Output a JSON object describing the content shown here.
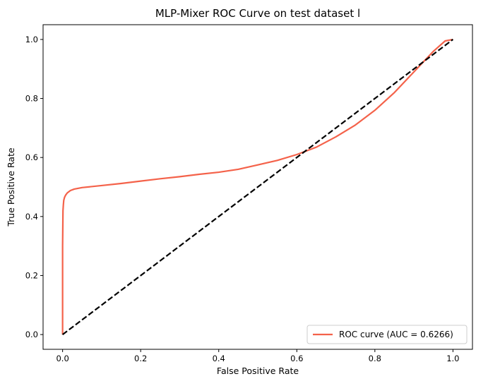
{
  "chart_data": {
    "type": "line",
    "title": "MLP-Mixer ROC Curve on test dataset l",
    "xlabel": "False Positive Rate",
    "ylabel": "True Positive Rate",
    "xlim": [
      -0.05,
      1.05
    ],
    "ylim": [
      -0.05,
      1.05
    ],
    "xticks": [
      0.0,
      0.2,
      0.4,
      0.6,
      0.8,
      1.0
    ],
    "xtick_labels": [
      "0.0",
      "0.2",
      "0.4",
      "0.6",
      "0.8",
      "1.0"
    ],
    "yticks": [
      0.0,
      0.2,
      0.4,
      0.6,
      0.8,
      1.0
    ],
    "ytick_labels": [
      "0.0",
      "0.2",
      "0.4",
      "0.6",
      "0.8",
      "1.0"
    ],
    "grid": false,
    "legend_position": "lower-right",
    "series": [
      {
        "name": "ROC curve (AUC = 0.6266)",
        "color": "#f4624a",
        "style": "solid",
        "x": [
          0.0,
          0.0,
          0.001,
          0.002,
          0.003,
          0.005,
          0.008,
          0.012,
          0.02,
          0.03,
          0.05,
          0.1,
          0.15,
          0.2,
          0.25,
          0.3,
          0.35,
          0.4,
          0.45,
          0.5,
          0.55,
          0.6,
          0.65,
          0.7,
          0.75,
          0.8,
          0.85,
          0.9,
          0.95,
          0.98,
          1.0
        ],
        "y": [
          0.0,
          0.3,
          0.42,
          0.44,
          0.455,
          0.465,
          0.473,
          0.48,
          0.488,
          0.493,
          0.498,
          0.505,
          0.512,
          0.52,
          0.528,
          0.535,
          0.543,
          0.55,
          0.56,
          0.575,
          0.59,
          0.61,
          0.635,
          0.67,
          0.71,
          0.76,
          0.82,
          0.89,
          0.96,
          0.995,
          1.0
        ]
      },
      {
        "name": "",
        "color": "#000000",
        "style": "dashed",
        "x": [
          0.0,
          1.0
        ],
        "y": [
          0.0,
          1.0
        ]
      }
    ]
  }
}
